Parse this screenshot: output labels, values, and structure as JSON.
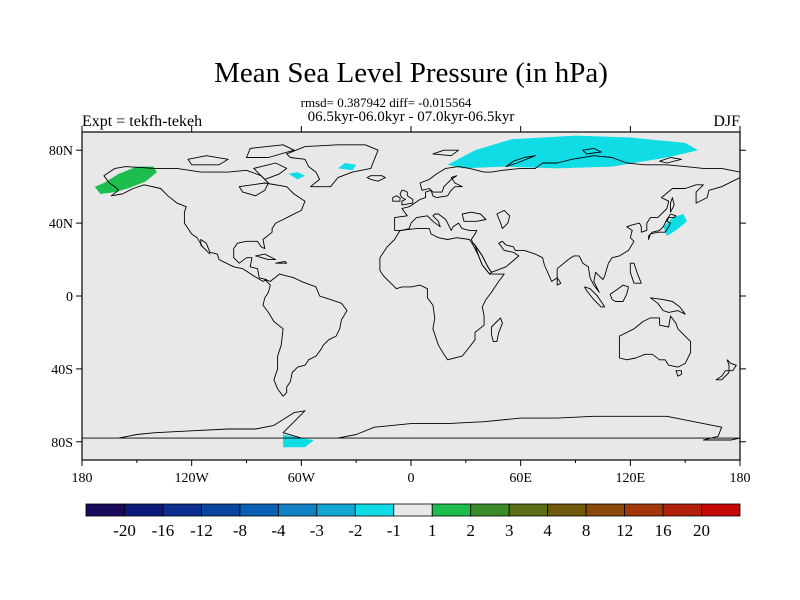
{
  "chart_data": {
    "type": "heatmap",
    "title": "Mean Sea Level Pressure (in hPa)",
    "stats": "rmsd= 0.387942 diff= -0.015564",
    "subtitle": "06.5kyr-06.0kyr - 07.0kyr-06.5kyr",
    "left_label": "Expt = tekfh-tekeh",
    "right_label": "DJF",
    "xlim": [
      -180,
      180
    ],
    "ylim": [
      -90,
      90
    ],
    "x_ticks": [
      {
        "value": -180,
        "label": "180"
      },
      {
        "value": -120,
        "label": "120W"
      },
      {
        "value": -60,
        "label": "60W"
      },
      {
        "value": 0,
        "label": "0"
      },
      {
        "value": 60,
        "label": "60E"
      },
      {
        "value": 120,
        "label": "120E"
      },
      {
        "value": 180,
        "label": "180"
      }
    ],
    "y_ticks": [
      {
        "value": 80,
        "label": "80N"
      },
      {
        "value": 40,
        "label": "40N"
      },
      {
        "value": 0,
        "label": "0"
      },
      {
        "value": -40,
        "label": "40S"
      },
      {
        "value": -80,
        "label": "80S"
      }
    ],
    "colorbar": {
      "colors": [
        "#1a0a5c",
        "#0b1a7a",
        "#0b2e8f",
        "#0a46a0",
        "#0a60b4",
        "#1180c4",
        "#14a6d4",
        "#10dce6",
        "#e8e8e8",
        "#1dbd4e",
        "#3a8a2a",
        "#5a6e16",
        "#6e5a0a",
        "#8a4a0a",
        "#a0380a",
        "#b0200a",
        "#c40808"
      ],
      "labels": [
        "-20",
        "-16",
        "-12",
        "-8",
        "-4",
        "-3",
        "-2",
        "-1",
        "1",
        "2",
        "3",
        "4",
        "8",
        "12",
        "16",
        "20"
      ]
    },
    "anomaly_regions": [
      {
        "name": "alaska-positive",
        "color": "#1dbd4e",
        "polygon": [
          [
            -168,
            62
          ],
          [
            -160,
            67
          ],
          [
            -150,
            71
          ],
          [
            -141,
            71
          ],
          [
            -139,
            68
          ],
          [
            -145,
            63
          ],
          [
            -155,
            59
          ],
          [
            -162,
            57
          ],
          [
            -170,
            56
          ],
          [
            -173,
            60
          ]
        ]
      },
      {
        "name": "siberia-negative",
        "color": "#10dce6",
        "polygon": [
          [
            20,
            72
          ],
          [
            35,
            80
          ],
          [
            55,
            86
          ],
          [
            90,
            88
          ],
          [
            120,
            87
          ],
          [
            150,
            84
          ],
          [
            157,
            80
          ],
          [
            140,
            76
          ],
          [
            110,
            71
          ],
          [
            80,
            70
          ],
          [
            50,
            71
          ],
          [
            28,
            70
          ]
        ]
      },
      {
        "name": "greenland-negative",
        "color": "#10dce6",
        "polygon": [
          [
            -40,
            70
          ],
          [
            -36,
            73
          ],
          [
            -30,
            72
          ],
          [
            -32,
            69
          ]
        ]
      },
      {
        "name": "labrador-negative",
        "color": "#10dce6",
        "polygon": [
          [
            -67,
            67
          ],
          [
            -62,
            68
          ],
          [
            -58,
            66
          ],
          [
            -62,
            64
          ]
        ]
      },
      {
        "name": "japan-negative",
        "color": "#10dce6",
        "polygon": [
          [
            138,
            38
          ],
          [
            143,
            43
          ],
          [
            149,
            45
          ],
          [
            151,
            41
          ],
          [
            145,
            36
          ],
          [
            140,
            33
          ]
        ]
      },
      {
        "name": "antarctic-negative",
        "color": "#10dce6",
        "polygon": [
          [
            -70,
            -76
          ],
          [
            -60,
            -78
          ],
          [
            -53,
            -79
          ],
          [
            -58,
            -83
          ],
          [
            -70,
            -83
          ]
        ]
      }
    ]
  }
}
